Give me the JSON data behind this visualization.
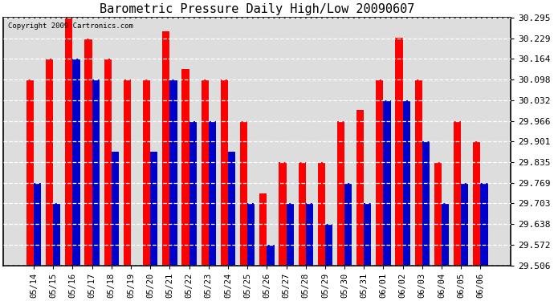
{
  "title": "Barometric Pressure Daily High/Low 20090607",
  "copyright": "Copyright 2009 Cartronics.com",
  "dates": [
    "05/14",
    "05/15",
    "05/16",
    "05/17",
    "05/18",
    "05/19",
    "05/20",
    "05/21",
    "05/22",
    "05/23",
    "05/24",
    "05/25",
    "05/26",
    "05/27",
    "05/28",
    "05/29",
    "05/30",
    "05/31",
    "06/01",
    "06/02",
    "06/03",
    "06/04",
    "06/05",
    "06/06"
  ],
  "highs": [
    30.098,
    30.164,
    30.295,
    30.229,
    30.164,
    30.098,
    30.098,
    30.25,
    30.13,
    30.098,
    30.098,
    29.966,
    29.736,
    29.835,
    29.835,
    29.835,
    29.966,
    30.0,
    30.098,
    30.23,
    30.098,
    29.835,
    29.966,
    29.901
  ],
  "lows": [
    29.769,
    29.703,
    30.164,
    30.098,
    29.868,
    29.506,
    29.868,
    30.098,
    29.966,
    29.966,
    29.868,
    29.703,
    29.572,
    29.703,
    29.703,
    29.638,
    29.769,
    29.703,
    30.032,
    30.032,
    29.901,
    29.703,
    29.769,
    29.769
  ],
  "high_color": "#ff0000",
  "low_color": "#0000cc",
  "ylim_low": 29.506,
  "ylim_high": 30.295,
  "yticks": [
    29.506,
    29.572,
    29.638,
    29.703,
    29.769,
    29.835,
    29.901,
    29.966,
    30.032,
    30.098,
    30.164,
    30.229,
    30.295
  ],
  "background_color": "#ffffff",
  "plot_bg_color": "#ffffff",
  "title_fontsize": 11,
  "bar_width": 0.38,
  "figwidth": 6.9,
  "figheight": 3.75,
  "dpi": 100
}
